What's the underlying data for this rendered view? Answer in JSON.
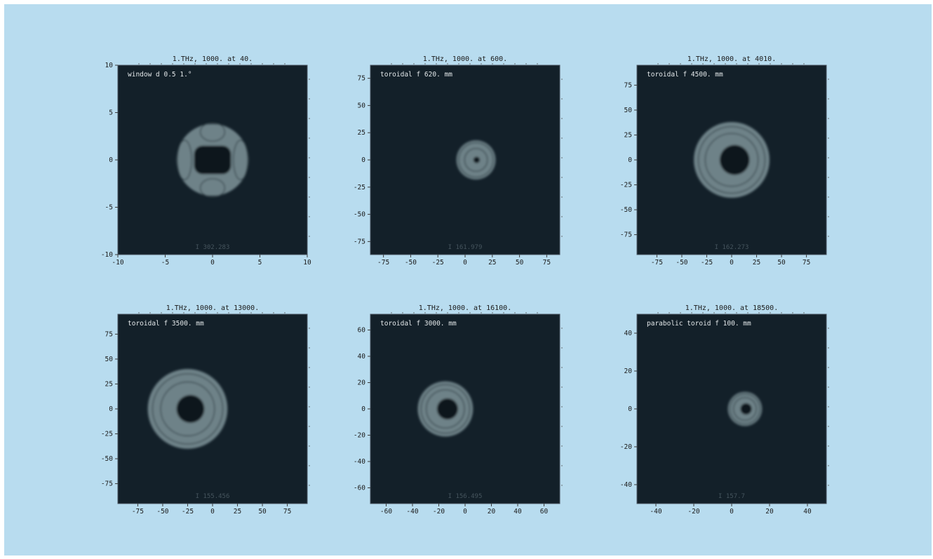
{
  "chart_data": [
    {
      "type": "heatmap",
      "title": "1.THz,     1000. at 40.",
      "label": "window d  0.5    1.°",
      "intensity": "I  302.283",
      "xlim": [
        -10,
        10
      ],
      "ylim": [
        -10,
        10
      ],
      "xticks": [
        -10,
        -5,
        0,
        5,
        10
      ],
      "yticks": [
        -10,
        -5,
        0,
        5,
        10
      ],
      "beam": {
        "shape": "window-pattern",
        "center": [
          0,
          0
        ],
        "outer_radius": 3.8,
        "inner_radius": 1.5
      }
    },
    {
      "type": "heatmap",
      "title": "1.THz,     1000. at 600.",
      "label": "toroidal    f  620. mm",
      "intensity": "I  161.979",
      "xlim": [
        -87,
        87
      ],
      "ylim": [
        -87,
        87
      ],
      "xticks": [
        -75,
        -50,
        -25,
        0,
        25,
        50,
        75
      ],
      "yticks": [
        -75,
        -50,
        -25,
        0,
        25,
        50,
        75
      ],
      "beam": {
        "shape": "ring",
        "center": [
          10,
          0
        ],
        "outer_radius": 18,
        "inner_radius": 3
      }
    },
    {
      "type": "heatmap",
      "title": "1.THz,     1000. at 4010.",
      "label": "toroidal    f  4500. mm",
      "intensity": "I  162.273",
      "xlim": [
        -95,
        95
      ],
      "ylim": [
        -95,
        95
      ],
      "xticks": [
        -75,
        -50,
        -25,
        0,
        25,
        50,
        75
      ],
      "yticks": [
        -75,
        -50,
        -25,
        0,
        25,
        50,
        75
      ],
      "beam": {
        "shape": "ring",
        "center": [
          0,
          0
        ],
        "outer_radius": 38,
        "inner_radius": 15
      }
    },
    {
      "type": "heatmap",
      "title": "1.THz,     1000. at 13000.",
      "label": "toroidal    f  3500. mm",
      "intensity": "I  155.456",
      "xlim": [
        -95,
        95
      ],
      "ylim": [
        -95,
        95
      ],
      "xticks": [
        -75,
        -50,
        -25,
        0,
        25,
        50,
        75
      ],
      "yticks": [
        -75,
        -50,
        -25,
        0,
        25,
        50,
        75
      ],
      "beam": {
        "shape": "ring",
        "center": [
          -25,
          0
        ],
        "outer_radius": 40,
        "inner_radius": 14
      }
    },
    {
      "type": "heatmap",
      "title": "1.THz,     1000. at 16100.",
      "label": "toroidal    f  3000. mm",
      "intensity": "I  156.495",
      "xlim": [
        -72,
        72
      ],
      "ylim": [
        -72,
        72
      ],
      "xticks": [
        -60,
        -40,
        -20,
        0,
        20,
        40,
        60
      ],
      "yticks": [
        -60,
        -40,
        -20,
        0,
        20,
        40,
        60
      ],
      "beam": {
        "shape": "ring",
        "center": [
          -15,
          0
        ],
        "outer_radius": 21,
        "inner_radius": 8
      }
    },
    {
      "type": "heatmap",
      "title": "1.THz,     1000. at 18500.",
      "label": "parabolic toroid   f  100. mm",
      "intensity": "I  157.7",
      "xlim": [
        -50,
        50
      ],
      "ylim": [
        -50,
        50
      ],
      "xticks": [
        -40,
        -20,
        0,
        20,
        40
      ],
      "yticks": [
        -40,
        -20,
        0,
        20,
        40
      ],
      "beam": {
        "shape": "ring",
        "center": [
          7,
          0
        ],
        "outer_radius": 9,
        "inner_radius": 3
      }
    }
  ]
}
